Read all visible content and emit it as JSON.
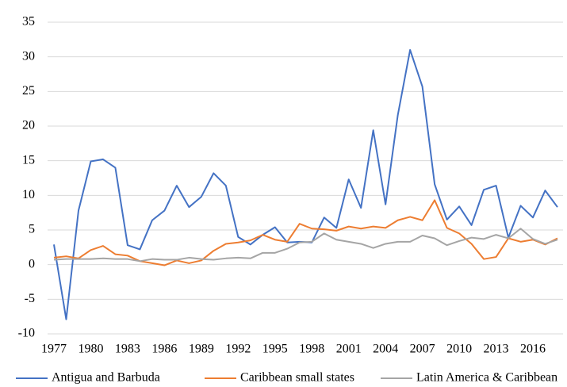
{
  "chart_data": {
    "type": "line",
    "categories": [
      "1977",
      null,
      null,
      "1980",
      null,
      null,
      "1983",
      null,
      null,
      "1986",
      null,
      null,
      "1989",
      null,
      null,
      "1992",
      null,
      null,
      "1995",
      null,
      null,
      "1998",
      null,
      null,
      "2001",
      null,
      null,
      "2004",
      null,
      null,
      "2007",
      null,
      null,
      "2010",
      null,
      null,
      "2013",
      null,
      null,
      "2016",
      null,
      null
    ],
    "ylim": [
      -10,
      35
    ],
    "yticks": [
      -10,
      -5,
      0,
      5,
      10,
      15,
      20,
      25,
      30,
      35
    ],
    "grid": true,
    "legend": "bottom",
    "series": [
      {
        "name": "Antigua and Barbuda",
        "color": "#4472c4",
        "values": [
          2.9,
          -7.9,
          7.8,
          14.9,
          15.2,
          14.0,
          2.8,
          2.2,
          6.4,
          7.8,
          11.4,
          8.3,
          9.8,
          13.2,
          11.4,
          4.0,
          2.9,
          4.3,
          5.4,
          3.2,
          3.3,
          3.2,
          6.8,
          5.3,
          12.3,
          8.2,
          19.4,
          8.7,
          21.6,
          31.0,
          25.7,
          11.6,
          6.5,
          8.4,
          5.7,
          10.8,
          11.4,
          3.9,
          8.5,
          6.8,
          10.7,
          8.3
        ]
      },
      {
        "name": "Caribbean small states",
        "color": "#ed7d31",
        "values": [
          1.0,
          1.2,
          0.9,
          2.1,
          2.7,
          1.5,
          1.3,
          0.5,
          0.2,
          -0.1,
          0.6,
          0.2,
          0.6,
          2.0,
          3.0,
          3.2,
          3.5,
          4.3,
          3.6,
          3.3,
          5.9,
          5.2,
          5.1,
          4.9,
          5.5,
          5.2,
          5.5,
          5.3,
          6.4,
          6.9,
          6.4,
          9.3,
          5.3,
          4.5,
          3.0,
          0.8,
          1.1,
          3.8,
          3.3,
          3.6,
          2.9,
          3.8
        ]
      },
      {
        "name": "Latin America & Caribbean",
        "color": "#a5a5a5",
        "values": [
          0.7,
          0.8,
          0.8,
          0.8,
          0.9,
          0.8,
          0.8,
          0.5,
          0.8,
          0.7,
          0.7,
          1.0,
          0.8,
          0.7,
          0.9,
          1.0,
          0.9,
          1.7,
          1.7,
          2.3,
          3.2,
          3.3,
          4.5,
          3.6,
          3.3,
          3.0,
          2.4,
          3.0,
          3.3,
          3.3,
          4.2,
          3.8,
          2.8,
          3.4,
          3.9,
          3.7,
          4.3,
          3.8,
          5.2,
          3.7,
          3.0,
          3.6
        ]
      }
    ]
  }
}
